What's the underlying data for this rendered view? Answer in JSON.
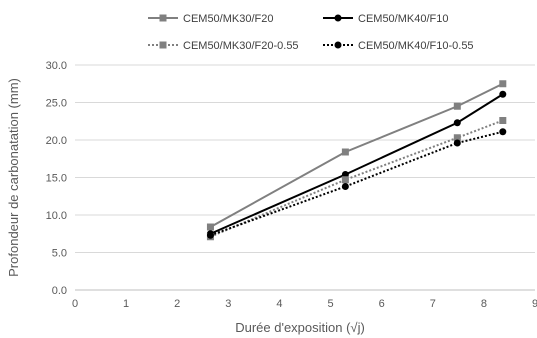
{
  "chart_data": {
    "type": "line",
    "title": "",
    "xlabel": "Durée d'exposition (√j)",
    "ylabel": "Profondeur de carbonatation (mm)",
    "xlim": [
      0,
      9
    ],
    "ylim": [
      0,
      30
    ],
    "xticks": [
      "0",
      "1",
      "2",
      "3",
      "4",
      "5",
      "6",
      "7",
      "8",
      "9"
    ],
    "yticks": [
      "0.0",
      "5.0",
      "10.0",
      "15.0",
      "20.0",
      "25.0",
      "30.0"
    ],
    "grid": "horizontal",
    "legend_position": "top",
    "series": [
      {
        "name": "CEM50/MK30/F20",
        "color": "#808080",
        "line": "solid",
        "marker": "square",
        "x": [
          2.65,
          5.29,
          7.48,
          8.37
        ],
        "y": [
          8.4,
          18.4,
          24.5,
          27.5
        ]
      },
      {
        "name": "CEM50/MK40/F10",
        "color": "#000000",
        "line": "solid",
        "marker": "circle",
        "x": [
          2.65,
          5.29,
          7.48,
          8.37
        ],
        "y": [
          7.5,
          15.4,
          22.3,
          26.1
        ]
      },
      {
        "name": "CEM50/MK30/F20-0.55",
        "color": "#808080",
        "line": "dotted",
        "marker": "square",
        "x": [
          2.65,
          5.29,
          7.48,
          8.37
        ],
        "y": [
          7.1,
          14.7,
          20.3,
          22.6
        ]
      },
      {
        "name": "CEM50/MK40/F10-0.55",
        "color": "#000000",
        "line": "dotted",
        "marker": "circle",
        "x": [
          2.65,
          5.29,
          7.48,
          8.37
        ],
        "y": [
          7.3,
          13.8,
          19.6,
          21.1
        ]
      }
    ]
  }
}
